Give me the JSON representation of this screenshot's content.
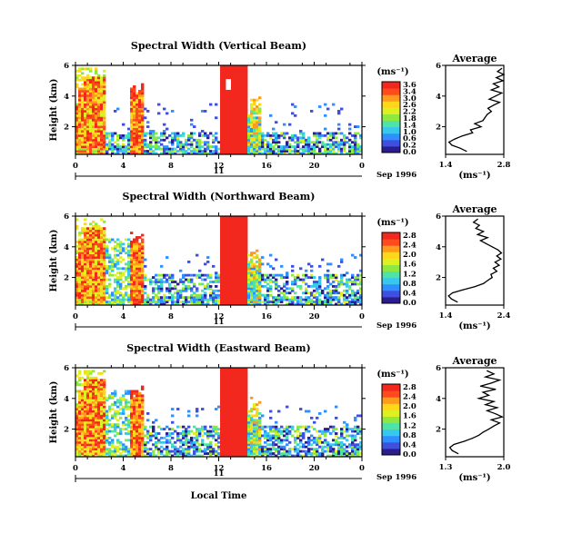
{
  "chart_data": [
    {
      "type": "heatmap",
      "title": "Spectral Width (Vertical Beam)",
      "ylabel": "Height (km)",
      "xlabel": "",
      "xlim": [
        0,
        24
      ],
      "ylim": [
        0.2,
        6
      ],
      "x_ticks": [
        "0",
        "4",
        "8",
        "12",
        "16",
        "20",
        "0"
      ],
      "y_ticks": [
        "6",
        "4",
        "2"
      ],
      "date_label": "11",
      "month_label": "Sep 1996",
      "colorbar": {
        "unit": "(ms⁻¹)",
        "ticks": [
          "3.6",
          "3.4",
          "3.0",
          "2.6",
          "2.2",
          "1.8",
          "1.4",
          "1.0",
          "0.6",
          "0.2",
          "0.0"
        ]
      },
      "profile": {
        "title": "Average",
        "unit": "(ms⁻¹)",
        "xlim": [
          1.4,
          2.8
        ],
        "x_ticks": [
          "1.4",
          "2.8"
        ],
        "y_ticks": [
          "6",
          "4",
          "2"
        ],
        "height": [
          0.4,
          0.6,
          0.8,
          1.0,
          1.2,
          1.4,
          1.6,
          1.8,
          2.0,
          2.2,
          2.4,
          2.6,
          2.8,
          3.0,
          3.2,
          3.4,
          3.6,
          3.8,
          4.0,
          4.2,
          4.4,
          4.6,
          4.8,
          5.0,
          5.2,
          5.4,
          5.6,
          5.8
        ],
        "values": [
          1.9,
          1.75,
          1.55,
          1.48,
          1.62,
          1.8,
          2.05,
          2.0,
          2.25,
          2.1,
          2.3,
          2.35,
          2.4,
          2.5,
          2.42,
          2.55,
          2.7,
          2.45,
          2.6,
          2.75,
          2.5,
          2.68,
          2.55,
          2.78,
          2.62,
          2.8,
          2.65,
          2.75
        ]
      }
    },
    {
      "type": "heatmap",
      "title": "Spectral Width (Northward Beam)",
      "ylabel": "Height (km)",
      "xlabel": "",
      "xlim": [
        0,
        24
      ],
      "ylim": [
        0.2,
        6
      ],
      "x_ticks": [
        "0",
        "4",
        "8",
        "12",
        "16",
        "20",
        "0"
      ],
      "y_ticks": [
        "6",
        "4",
        "2"
      ],
      "date_label": "11",
      "month_label": "Sep 1996",
      "colorbar": {
        "unit": "(ms⁻¹)",
        "ticks": [
          "2.8",
          "2.4",
          "2.0",
          "1.6",
          "1.2",
          "0.8",
          "0.4",
          "0.0"
        ]
      },
      "profile": {
        "title": "Average",
        "unit": "(ms⁻¹)",
        "xlim": [
          1.4,
          2.4
        ],
        "x_ticks": [
          "1.4",
          "2.4"
        ],
        "y_ticks": [
          "6",
          "4",
          "2"
        ],
        "height": [
          0.4,
          0.6,
          0.8,
          1.0,
          1.2,
          1.4,
          1.6,
          1.8,
          2.0,
          2.2,
          2.4,
          2.6,
          2.8,
          3.0,
          3.2,
          3.4,
          3.6,
          3.8,
          4.0,
          4.2,
          4.4,
          4.6,
          4.8,
          5.0,
          5.2,
          5.4,
          5.6,
          5.8
        ],
        "values": [
          1.6,
          1.5,
          1.45,
          1.52,
          1.7,
          1.9,
          2.05,
          2.12,
          2.2,
          2.18,
          2.28,
          2.22,
          2.32,
          2.25,
          2.35,
          2.28,
          2.36,
          2.3,
          2.2,
          2.1,
          2.0,
          2.12,
          1.95,
          2.05,
          1.92,
          1.98,
          1.88,
          1.95
        ]
      }
    },
    {
      "type": "heatmap",
      "title": "Spectral Width (Eastward Beam)",
      "ylabel": "Height (km)",
      "xlabel": "Local Time",
      "xlim": [
        0,
        24
      ],
      "ylim": [
        0.2,
        6
      ],
      "x_ticks": [
        "0",
        "4",
        "8",
        "12",
        "16",
        "20",
        "0"
      ],
      "y_ticks": [
        "6",
        "4",
        "2"
      ],
      "date_label": "11",
      "month_label": "Sep 1996",
      "colorbar": {
        "unit": "(ms⁻¹)",
        "ticks": [
          "2.8",
          "2.4",
          "2.0",
          "1.6",
          "1.2",
          "0.8",
          "0.4",
          "0.0"
        ]
      },
      "profile": {
        "title": "Average",
        "unit": "(ms⁻¹)",
        "xlim": [
          1.3,
          2.0
        ],
        "x_ticks": [
          "1.3",
          "2.0"
        ],
        "y_ticks": [
          "6",
          "4",
          "2"
        ],
        "height": [
          0.4,
          0.6,
          0.8,
          1.0,
          1.2,
          1.4,
          1.6,
          1.8,
          2.0,
          2.2,
          2.4,
          2.6,
          2.8,
          3.0,
          3.2,
          3.4,
          3.6,
          3.8,
          4.0,
          4.2,
          4.4,
          4.6,
          4.8,
          5.0,
          5.2,
          5.4,
          5.6,
          5.8
        ],
        "values": [
          1.45,
          1.38,
          1.35,
          1.4,
          1.52,
          1.62,
          1.7,
          1.75,
          1.82,
          1.88,
          1.95,
          1.85,
          1.98,
          1.9,
          1.8,
          1.92,
          1.78,
          1.88,
          1.7,
          1.82,
          1.75,
          1.9,
          1.72,
          1.85,
          1.95,
          1.78,
          1.88,
          1.8
        ]
      }
    }
  ],
  "colors": {
    "scale": [
      "#2b1d8c",
      "#3f4fe0",
      "#2f8fff",
      "#38c8ee",
      "#4fe3a8",
      "#8fe840",
      "#dff022",
      "#ffd61a",
      "#ff9a1c",
      "#ff4a1e",
      "#f2271d"
    ],
    "axis": "#000000",
    "background": "#ffffff"
  }
}
